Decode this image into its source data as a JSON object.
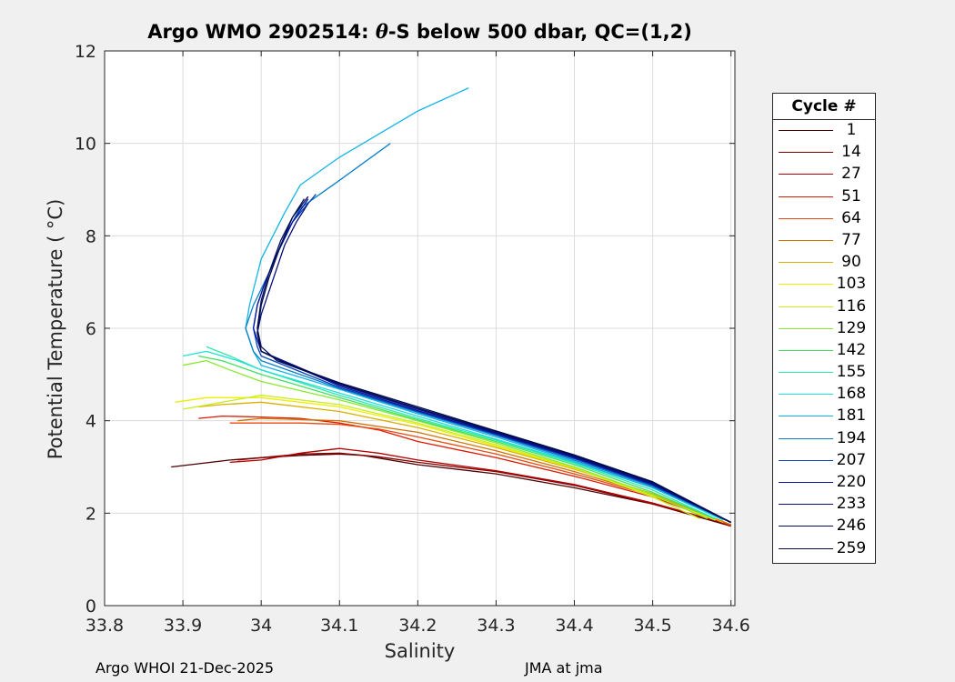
{
  "chart_data": {
    "type": "line",
    "title": "Argo WMO 2902514: θ-S below 500 dbar,  QC=(1,2)",
    "title_parts": {
      "prefix": "Argo WMO 2902514: ",
      "theta": "θ",
      "suffix": "-S below 500 dbar,  QC=(1,2)"
    },
    "xlabel": "Salinity",
    "ylabel": "Potential Temperature ( °C)",
    "xlim": [
      33.8,
      34.605
    ],
    "ylim": [
      0,
      12
    ],
    "xticks": [
      "33.8",
      "33.9",
      "34",
      "34.1",
      "34.2",
      "34.3",
      "34.4",
      "34.5",
      "34.6"
    ],
    "yticks": [
      "0",
      "2",
      "4",
      "6",
      "8",
      "10",
      "12"
    ],
    "grid": true,
    "legend": {
      "title": "Cycle #",
      "position": "outside-right",
      "entries": [
        {
          "label": "1",
          "color": "#4d0000"
        },
        {
          "label": "14",
          "color": "#820000"
        },
        {
          "label": "27",
          "color": "#b40000"
        },
        {
          "label": "51",
          "color": "#dc1b00"
        },
        {
          "label": "64",
          "color": "#e84a10"
        },
        {
          "label": "77",
          "color": "#cf7200"
        },
        {
          "label": "90",
          "color": "#d9b000"
        },
        {
          "label": "103",
          "color": "#eeee00"
        },
        {
          "label": "116",
          "color": "#c8ee20"
        },
        {
          "label": "129",
          "color": "#8ae830"
        },
        {
          "label": "142",
          "color": "#40e060"
        },
        {
          "label": "155",
          "color": "#2ee8a8"
        },
        {
          "label": "168",
          "color": "#20e0d8"
        },
        {
          "label": "181",
          "color": "#12b4e8"
        },
        {
          "label": "194",
          "color": "#0a80c8"
        },
        {
          "label": "207",
          "color": "#0844b8"
        },
        {
          "label": "220",
          "color": "#0614a0"
        },
        {
          "label": "233",
          "color": "#04107a"
        },
        {
          "label": "246",
          "color": "#031060"
        },
        {
          "label": "259",
          "color": "#010a4a"
        }
      ]
    },
    "series": [
      {
        "name": "1",
        "x": [
          33.885,
          33.91,
          33.96,
          34.0,
          34.05,
          34.1,
          34.13,
          34.2,
          34.3,
          34.4,
          34.5,
          34.6
        ],
        "y": [
          3.0,
          3.05,
          3.15,
          3.2,
          3.25,
          3.28,
          3.25,
          3.05,
          2.85,
          2.55,
          2.2,
          1.72
        ]
      },
      {
        "name": "14",
        "x": [
          33.97,
          34.0,
          34.05,
          34.1,
          34.15,
          34.2,
          34.3,
          34.4,
          34.5,
          34.6
        ],
        "y": [
          3.15,
          3.2,
          3.28,
          3.3,
          3.22,
          3.1,
          2.9,
          2.6,
          2.2,
          1.75
        ]
      },
      {
        "name": "27",
        "x": [
          33.96,
          34.0,
          34.05,
          34.1,
          34.15,
          34.2,
          34.3,
          34.4,
          34.5,
          34.6
        ],
        "y": [
          3.1,
          3.15,
          3.3,
          3.4,
          3.3,
          3.15,
          2.92,
          2.62,
          2.22,
          1.74
        ]
      },
      {
        "name": "51",
        "x": [
          33.92,
          33.95,
          34.0,
          34.05,
          34.1,
          34.15,
          34.2,
          34.3,
          34.4,
          34.5,
          34.6
        ],
        "y": [
          4.05,
          4.1,
          4.08,
          4.05,
          3.95,
          3.8,
          3.55,
          3.2,
          2.8,
          2.35,
          1.73
        ]
      },
      {
        "name": "64",
        "x": [
          33.96,
          34.0,
          34.05,
          34.1,
          34.15,
          34.2,
          34.3,
          34.4,
          34.5,
          34.6
        ],
        "y": [
          3.95,
          3.95,
          3.95,
          3.92,
          3.82,
          3.65,
          3.28,
          2.85,
          2.38,
          1.74
        ]
      },
      {
        "name": "77",
        "x": [
          33.97,
          34.0,
          34.1,
          34.2,
          34.3,
          34.4,
          34.5,
          34.6
        ],
        "y": [
          4.0,
          4.05,
          4.0,
          3.75,
          3.35,
          2.9,
          2.4,
          1.75
        ]
      },
      {
        "name": "90",
        "x": [
          33.92,
          33.95,
          34.0,
          34.1,
          34.2,
          34.3,
          34.4,
          34.5,
          34.59
        ],
        "y": [
          4.3,
          4.35,
          4.4,
          4.2,
          3.85,
          3.42,
          2.95,
          2.42,
          1.8
        ]
      },
      {
        "name": "103",
        "x": [
          33.89,
          33.93,
          34.0,
          34.1,
          34.2,
          34.3,
          34.4,
          34.5,
          34.58
        ],
        "y": [
          4.4,
          4.5,
          4.5,
          4.3,
          3.92,
          3.45,
          2.97,
          2.38,
          1.85
        ]
      },
      {
        "name": "116",
        "x": [
          33.9,
          33.95,
          34.0,
          34.1,
          34.2,
          34.3,
          34.4,
          34.5,
          34.56
        ],
        "y": [
          4.25,
          4.4,
          4.55,
          4.35,
          3.95,
          3.48,
          2.98,
          2.35,
          1.88
        ]
      },
      {
        "name": "129",
        "x": [
          33.9,
          33.93,
          33.96,
          34.0,
          34.1,
          34.2,
          34.3,
          34.4,
          34.5,
          34.57
        ],
        "y": [
          5.2,
          5.3,
          5.1,
          4.85,
          4.45,
          4.0,
          3.52,
          3.0,
          2.4,
          1.88
        ]
      },
      {
        "name": "142",
        "x": [
          33.92,
          33.95,
          34.0,
          34.1,
          34.2,
          34.3,
          34.4,
          34.5,
          34.58
        ],
        "y": [
          5.4,
          5.3,
          5.0,
          4.5,
          4.02,
          3.55,
          3.05,
          2.45,
          1.87
        ]
      },
      {
        "name": "155",
        "x": [
          33.93,
          33.96,
          34.0,
          34.1,
          34.2,
          34.3,
          34.4,
          34.5,
          34.58
        ],
        "y": [
          5.6,
          5.4,
          5.1,
          4.55,
          4.05,
          3.58,
          3.08,
          2.5,
          1.88
        ]
      },
      {
        "name": "168",
        "x": [
          33.9,
          33.93,
          33.97,
          34.0,
          34.1,
          34.2,
          34.3,
          34.4,
          34.5,
          34.59
        ],
        "y": [
          5.4,
          5.5,
          5.3,
          5.1,
          4.6,
          4.1,
          3.6,
          3.1,
          2.55,
          1.85
        ]
      },
      {
        "name": "181",
        "x": [
          34.265,
          34.2,
          34.1,
          34.05,
          34.03,
          34.0,
          33.985,
          33.98,
          33.99,
          34.0,
          34.1,
          34.2,
          34.3,
          34.4,
          34.5,
          34.6
        ],
        "y": [
          11.2,
          10.7,
          9.7,
          9.1,
          8.5,
          7.5,
          6.5,
          6.0,
          5.5,
          5.2,
          4.68,
          4.15,
          3.65,
          3.12,
          2.55,
          1.8
        ]
      },
      {
        "name": "194",
        "x": [
          34.165,
          34.1,
          34.05,
          34.03,
          34.01,
          33.99,
          33.98,
          33.99,
          34.0,
          34.1,
          34.2,
          34.3,
          34.4,
          34.5,
          34.6
        ],
        "y": [
          10.0,
          9.2,
          8.6,
          8.0,
          7.2,
          6.5,
          6.0,
          5.5,
          5.3,
          4.7,
          4.18,
          3.68,
          3.15,
          2.58,
          1.8
        ]
      },
      {
        "name": "207",
        "x": [
          34.07,
          34.04,
          34.02,
          34.005,
          33.995,
          33.99,
          33.995,
          34.0,
          34.1,
          34.2,
          34.3,
          34.4,
          34.5,
          34.6
        ],
        "y": [
          8.9,
          8.3,
          7.6,
          7.0,
          6.5,
          6.0,
          5.6,
          5.4,
          4.72,
          4.2,
          3.7,
          3.18,
          2.6,
          1.8
        ]
      },
      {
        "name": "220",
        "x": [
          34.06,
          34.04,
          34.02,
          34.005,
          33.995,
          33.99,
          34.0,
          34.1,
          34.2,
          34.3,
          34.4,
          34.5,
          34.6
        ],
        "y": [
          8.8,
          8.3,
          7.6,
          7.0,
          6.5,
          6.0,
          5.5,
          4.75,
          4.22,
          3.72,
          3.2,
          2.62,
          1.8
        ]
      },
      {
        "name": "233",
        "x": [
          34.06,
          34.045,
          34.03,
          34.02,
          34.01,
          34.0,
          33.995,
          34.0,
          34.1,
          34.2,
          34.3,
          34.4,
          34.5,
          34.6
        ],
        "y": [
          8.7,
          8.3,
          7.8,
          7.3,
          6.8,
          6.3,
          5.9,
          5.5,
          4.78,
          4.25,
          3.74,
          3.22,
          2.64,
          1.8
        ]
      },
      {
        "name": "246",
        "x": [
          34.055,
          34.04,
          34.025,
          34.01,
          34.0,
          33.995,
          34.0,
          34.02,
          34.1,
          34.2,
          34.3,
          34.4,
          34.5,
          34.6
        ],
        "y": [
          8.8,
          8.4,
          7.9,
          7.2,
          6.6,
          6.0,
          5.6,
          5.3,
          4.8,
          4.27,
          3.76,
          3.24,
          2.66,
          1.8
        ]
      },
      {
        "name": "259",
        "x": [
          34.06,
          34.04,
          34.025,
          34.01,
          34.0,
          33.995,
          34.0,
          34.03,
          34.1,
          34.2,
          34.3,
          34.4,
          34.5,
          34.6
        ],
        "y": [
          8.85,
          8.4,
          7.8,
          7.1,
          6.5,
          5.9,
          5.5,
          5.25,
          4.82,
          4.3,
          3.78,
          3.26,
          2.68,
          1.8
        ]
      }
    ]
  },
  "footer": {
    "left": "Argo WHOI 21-Dec-2025",
    "right": "JMA at jma"
  }
}
